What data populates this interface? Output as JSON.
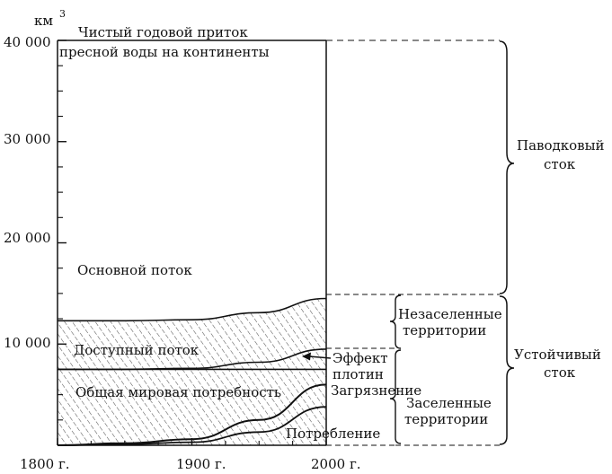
{
  "chart_data": {
    "type": "area",
    "ylabel": "км",
    "ylabel_superscript": "3",
    "y_ticks": [
      "40 000",
      "30 000",
      "20 000",
      "10 000"
    ],
    "y_tick_values": [
      40000,
      30000,
      20000,
      10000
    ],
    "x_ticks": [
      "1800 г.",
      "1900 г.",
      "2000 г."
    ],
    "x_tick_values": [
      1800,
      1900,
      2000
    ],
    "ylim": [
      0,
      40000
    ],
    "xlim": [
      1800,
      2000
    ],
    "grid": false,
    "series": [
      {
        "name": "Чистый годовой приток пресной воды на континенты",
        "x": [
          1800,
          2000
        ],
        "y": [
          40000,
          40000
        ]
      },
      {
        "name": "Основной поток",
        "x": [
          1800,
          1850,
          1900,
          1950,
          2000
        ],
        "y": [
          12300,
          12300,
          12400,
          13100,
          14500
        ]
      },
      {
        "name": "Доступный поток",
        "x": [
          1800,
          1850,
          1900,
          1950,
          2000
        ],
        "y": [
          7500,
          7500,
          7600,
          8200,
          9500
        ]
      },
      {
        "name": "Общая мировая потребность",
        "x": [
          1800,
          1850,
          1900,
          1950,
          2000
        ],
        "y": [
          0,
          200,
          600,
          2500,
          6000
        ]
      },
      {
        "name": "Потребление",
        "x": [
          1800,
          1850,
          1900,
          1950,
          2000
        ],
        "y": [
          0,
          100,
          300,
          1300,
          3800
        ]
      }
    ],
    "annotations": {
      "title_line1": "Чистый годовой приток",
      "title_line2": "пресной воды на континенты",
      "base_flow": "Основной поток",
      "available_flow": "Доступный поток",
      "world_demand": "Общая мировая потребность",
      "consumption": "Потребление",
      "dam_effect_line1": "Эффект",
      "dam_effect_line2": "плотин",
      "pollution": "Загрязнение",
      "unsettled_line1": "Незаселенные",
      "unsettled_line2": "территории",
      "settled_line1": "Заселенные",
      "settled_line2": "территории",
      "flood_line1": "Паводковый",
      "flood_line2": "сток",
      "stable_line1": "Устойчивый",
      "stable_line2": "сток"
    }
  }
}
